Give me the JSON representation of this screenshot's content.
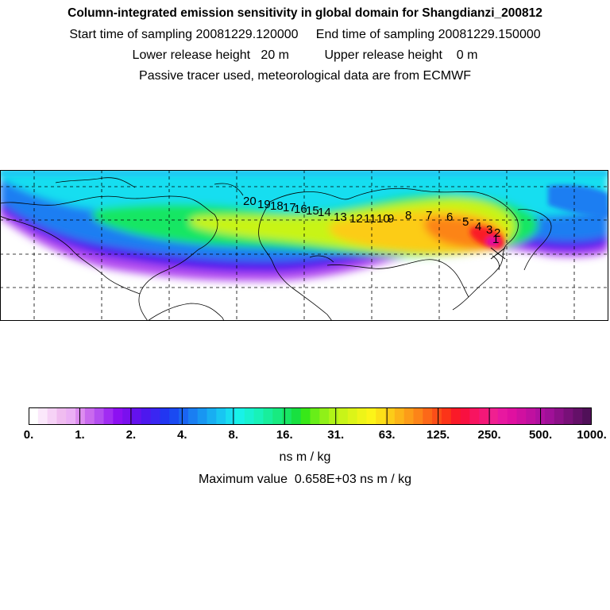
{
  "header": {
    "title": "Column-integrated emission sensitivity in global domain for Shangdianzi_200812",
    "line2": "Start time of sampling 20081229.120000     End time of sampling 20081229.150000",
    "line3": "Lower release height   20 m          Upper release height    0 m",
    "line4": "Passive tracer used, meteorological data are from ECMWF"
  },
  "map": {
    "trajectory_labels": [
      "20",
      "19",
      "18",
      "17",
      "16",
      "15",
      "14",
      "13",
      "12",
      "11",
      "10",
      "9",
      "8",
      "7",
      "6",
      "5",
      "4",
      "3",
      "2",
      "1"
    ],
    "station": "Shangdianzi"
  },
  "colorbar": {
    "tick_labels": [
      "0.",
      "1.",
      "2.",
      "4.",
      "8.",
      "16.",
      "31.",
      "63.",
      "125.",
      "250.",
      "500.",
      "1000."
    ],
    "colors": [
      "#ffffff",
      "#fbe8fb",
      "#f6d2f6",
      "#f0bcf0",
      "#ebb0f5",
      "#dd8cf0",
      "#c96aee",
      "#b44ef0",
      "#a12cf2",
      "#8d10f2",
      "#7a10ee",
      "#6412ee",
      "#4d18ee",
      "#3a26f2",
      "#2236f2",
      "#1a4af2",
      "#1a64f2",
      "#1a7ef2",
      "#1896f2",
      "#18aef2",
      "#18c6f2",
      "#18def0",
      "#18f2e8",
      "#18f2d0",
      "#18f2b8",
      "#18ee9c",
      "#18ea80",
      "#18e664",
      "#18e040",
      "#38e818",
      "#68ee18",
      "#90f018",
      "#b0f418",
      "#c8f418",
      "#dcf418",
      "#eef418",
      "#fcf418",
      "#fce018",
      "#fccc18",
      "#fcb418",
      "#fc9c18",
      "#fc8418",
      "#fc6818",
      "#fc4e18",
      "#fc3418",
      "#fa1a28",
      "#f81040",
      "#f81460",
      "#f41878",
      "#f02090",
      "#e818a0",
      "#e010a0",
      "#d010a0",
      "#c010a0",
      "#b010a0",
      "#a01098",
      "#8c1088",
      "#781078",
      "#641068",
      "#501058"
    ],
    "unit_label": "ns m / kg",
    "max_label": "Maximum value  0.658E+03 ns m / kg"
  }
}
